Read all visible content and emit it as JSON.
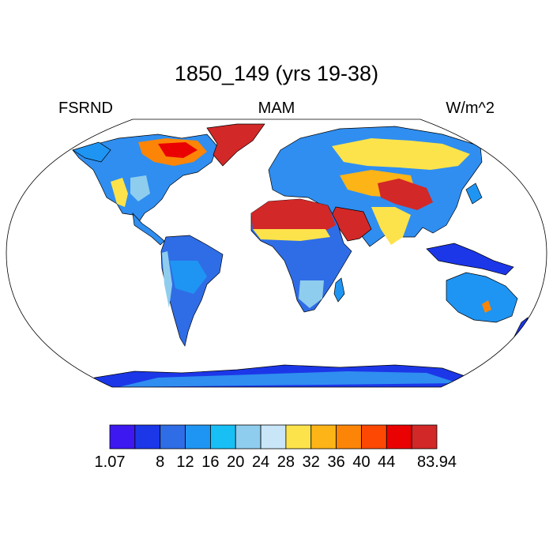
{
  "title": "1850_149 (yrs 19-38)",
  "subtitle_left": "FSRND",
  "subtitle_center": "MAM",
  "subtitle_right": "W/m^2",
  "colorbar": {
    "colors": [
      "#3d18f0",
      "#1c37e8",
      "#2f6de6",
      "#1f95f3",
      "#18bff5",
      "#8fcdee",
      "#c9e6f8",
      "#fde34b",
      "#fcb416",
      "#fc8507",
      "#fc4802",
      "#ea0101",
      "#d22828"
    ],
    "labels": [
      "1.07",
      "8",
      "12",
      "16",
      "20",
      "24",
      "28",
      "32",
      "36",
      "40",
      "44",
      "83.94"
    ]
  },
  "map": {
    "projection": "Robinson",
    "ocean_color": "#ffffff",
    "coastline_color": "#000000"
  }
}
